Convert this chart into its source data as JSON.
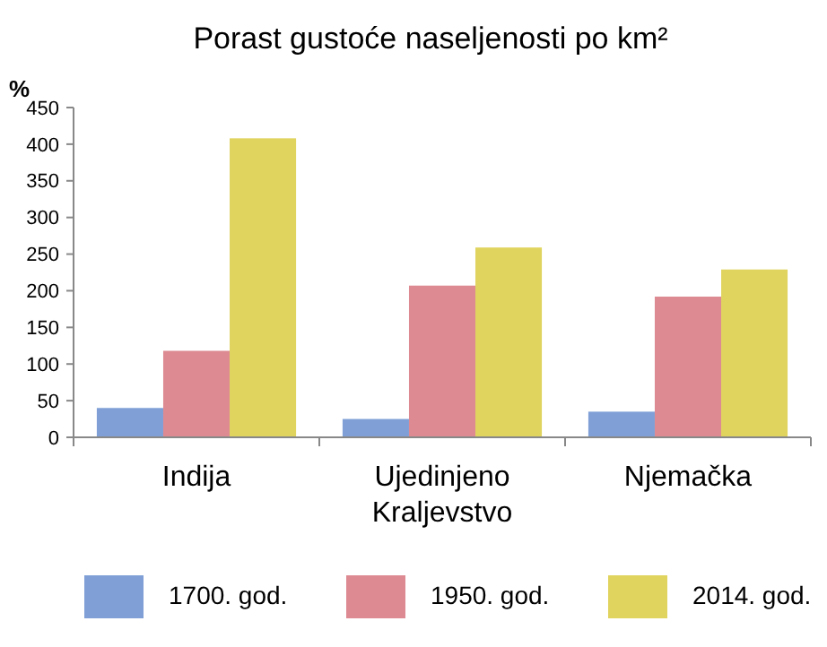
{
  "chart_data": {
    "type": "bar",
    "title": "Porast gustoće naseljenosti po km²",
    "ylabel": "%",
    "categories": [
      "Indija",
      "Ujedinjeno Kraljevstvo",
      "Njemačka"
    ],
    "series": [
      {
        "name": "1700. god.",
        "color": "#7f9fd6",
        "values": [
          40,
          25,
          35
        ]
      },
      {
        "name": "1950. god.",
        "color": "#dd8a92",
        "values": [
          118,
          207,
          192
        ]
      },
      {
        "name": "2014. god.",
        "color": "#e0d35e",
        "values": [
          408,
          259,
          229
        ]
      }
    ],
    "ylim": [
      0,
      450
    ],
    "yticks": [
      0,
      50,
      100,
      150,
      200,
      250,
      300,
      350,
      400,
      450
    ],
    "grid": false,
    "legend": "bottom"
  }
}
